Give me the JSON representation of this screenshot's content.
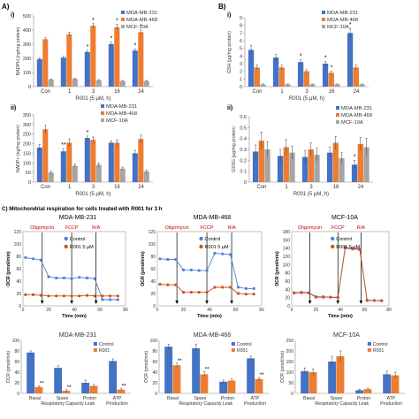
{
  "panel_a": {
    "letter": "A)",
    "top_left": {
      "sub": "i)",
      "ylabel": "NADPH (ng/mg protein)",
      "ymax": 500,
      "yticks": [
        "0",
        "100",
        "200",
        "300",
        "400",
        "500"
      ]
    },
    "bottom_left": {
      "sub": "ii)",
      "ylabel": "NADP+ (ng/mg protein)",
      "ymax": 350,
      "yticks": [
        "0",
        "50",
        "100",
        "150",
        "200",
        "250",
        "300",
        "350"
      ]
    }
  },
  "panel_b": {
    "letter": "B)",
    "top_right": {
      "sub": "i)",
      "ylabel": "GSH (μg/mg protein)",
      "ymax": 9,
      "yticks": [
        "0",
        "1",
        "2",
        "3",
        "4",
        "5",
        "6",
        "7",
        "8",
        "9"
      ]
    },
    "bottom_right": {
      "sub": "ii)",
      "ylabel": "GSSG (μg/mg protein)",
      "ymax": 0.6,
      "yticks": [
        "0",
        "0.1",
        "0.2",
        "0.3",
        "0.4",
        "0.5",
        "0.6"
      ]
    }
  },
  "panel_c": {
    "caption": "C) Mitochondrial respiration for cells treated with R001 for 3 h",
    "seahorse_titles": [
      "MDA-MB-231",
      "MDA-MB-468",
      "MCF-10A"
    ],
    "ocr_ylabel": "OCR (pmol/min)",
    "time_xlabel": "Time (min)",
    "injections": [
      "Oligomycin",
      "FCCP",
      "R/A"
    ],
    "ocr_legend": [
      "Control",
      "R001 5 μM"
    ],
    "bottom_legend": [
      "Control",
      "R001"
    ],
    "bar_categories": [
      "Basal",
      "Spare Respiratory Capacity",
      "Proton Leak",
      "ATP Production"
    ]
  },
  "legend_cells": [
    "MDA-MB-231",
    "MDA-MB-468",
    "MCF-10A"
  ],
  "treatment_xlabel": "R001 (5 μM, h)",
  "time_points": [
    "Con",
    "1",
    "3",
    "16",
    "24"
  ],
  "colors": {
    "blue": "#4472c4",
    "orange": "#ed7d31",
    "gray": "#a5a5a5",
    "red_label": "#c00000"
  },
  "chart_data": [
    {
      "id": "A-i",
      "type": "bar",
      "title": "",
      "xlabel": "R001 (5 μM, h)",
      "ylabel": "NADPH (ng/mg protein)",
      "ylim": [
        0,
        500
      ],
      "categories": [
        "Con",
        "1",
        "3",
        "16",
        "24"
      ],
      "series": [
        {
          "name": "MDA-MB-231",
          "values": [
            195,
            205,
            245,
            300,
            255
          ],
          "errors": [
            8,
            10,
            12,
            15,
            12
          ]
        },
        {
          "name": "MDA-MB-468",
          "values": [
            335,
            370,
            430,
            420,
            385
          ],
          "errors": [
            10,
            15,
            15,
            20,
            15
          ]
        },
        {
          "name": "MCF-10A",
          "values": [
            50,
            55,
            45,
            40,
            40
          ],
          "errors": [
            5,
            5,
            5,
            4,
            4
          ]
        }
      ],
      "significance": [
        "",
        "",
        "*",
        "*",
        "*"
      ],
      "significance_top": [
        "",
        "",
        "*",
        "*",
        "*"
      ]
    },
    {
      "id": "B-i",
      "type": "bar",
      "title": "",
      "xlabel": "R001 (5 μM, h)",
      "ylabel": "GSH (μg/mg protein)",
      "ylim": [
        0,
        9
      ],
      "categories": [
        "Con",
        "1",
        "3",
        "16",
        "24"
      ],
      "series": [
        {
          "name": "MDA-MB-231",
          "values": [
            4.8,
            3.8,
            3.2,
            3.0,
            7.0
          ],
          "errors": [
            0.6,
            0.4,
            0.3,
            0.3,
            0.6
          ]
        },
        {
          "name": "MDA-MB-468",
          "values": [
            2.5,
            2.5,
            2.0,
            1.8,
            2.5
          ],
          "errors": [
            0.3,
            0.3,
            0.2,
            0.2,
            0.3
          ]
        },
        {
          "name": "MCF-10A",
          "values": [
            0.3,
            0.3,
            0.3,
            0.3,
            0.3
          ],
          "errors": [
            0.05,
            0.05,
            0.05,
            0.05,
            0.05
          ]
        }
      ],
      "significance": [
        "",
        "",
        "*",
        "*",
        "*"
      ],
      "significance_top": [
        "",
        "",
        "",
        "*",
        ""
      ]
    },
    {
      "id": "A-ii",
      "type": "bar",
      "title": "",
      "xlabel": "R001 (5 μM, h)",
      "ylabel": "NADP+ (ng/mg protein)",
      "ylim": [
        0,
        350
      ],
      "categories": [
        "Con",
        "1",
        "3",
        "16",
        "24"
      ],
      "series": [
        {
          "name": "MDA-MB-231",
          "values": [
            180,
            160,
            230,
            205,
            150
          ],
          "errors": [
            15,
            15,
            10,
            10,
            15
          ]
        },
        {
          "name": "MDA-MB-468",
          "values": [
            275,
            205,
            220,
            205,
            225
          ],
          "errors": [
            20,
            20,
            15,
            15,
            20
          ]
        },
        {
          "name": "MCF-10A",
          "values": [
            50,
            85,
            90,
            70,
            55
          ],
          "errors": [
            8,
            10,
            10,
            8,
            8
          ]
        }
      ],
      "significance": [
        "",
        "**",
        "*",
        "",
        ""
      ],
      "significance_top": [
        "",
        "",
        "",
        "",
        ""
      ]
    },
    {
      "id": "B-ii",
      "type": "bar",
      "title": "",
      "xlabel": "R001 (5 μM, h)",
      "ylabel": "GSSG (μg/mg protein)",
      "ylim": [
        0,
        0.6
      ],
      "categories": [
        "Con",
        "1",
        "3",
        "16",
        "24"
      ],
      "series": [
        {
          "name": "MDA-MB-231",
          "values": [
            0.28,
            0.24,
            0.23,
            0.27,
            0.16
          ],
          "errors": [
            0.06,
            0.06,
            0.06,
            0.05,
            0.04
          ]
        },
        {
          "name": "MDA-MB-468",
          "values": [
            0.38,
            0.32,
            0.3,
            0.36,
            0.35
          ],
          "errors": [
            0.08,
            0.07,
            0.06,
            0.06,
            0.06
          ]
        },
        {
          "name": "MCF-10A",
          "values": [
            0.3,
            0.27,
            0.25,
            0.22,
            0.32
          ],
          "errors": [
            0.07,
            0.06,
            0.06,
            0.05,
            0.08
          ]
        }
      ],
      "significance": [
        "",
        "",
        "",
        "",
        "*"
      ],
      "significance_top": [
        "",
        "",
        "",
        "",
        ""
      ]
    },
    {
      "id": "C-ocr-231",
      "type": "line",
      "title": "MDA-MB-231",
      "xlabel": "Time (min)",
      "ylabel": "OCR (pmol/min)",
      "xlim": [
        0,
        80
      ],
      "ylim": [
        0,
        120
      ],
      "xticks": [
        0,
        20,
        40,
        60,
        80
      ],
      "yticks": [
        0,
        20,
        40,
        60,
        80,
        100,
        120
      ],
      "injections": [
        {
          "label": "Oligomycin",
          "x": 15
        },
        {
          "label": "FCCP",
          "x": 38
        },
        {
          "label": "R/A",
          "x": 57
        }
      ],
      "series": [
        {
          "name": "Control",
          "x": [
            2,
            8,
            14,
            20,
            26,
            32,
            38,
            44,
            50,
            56,
            62,
            68,
            74
          ],
          "y": [
            78,
            76,
            74,
            47,
            45,
            45,
            44,
            46,
            45,
            44,
            10,
            10,
            10
          ]
        },
        {
          "name": "R001 5 μM",
          "x": [
            2,
            8,
            14,
            20,
            26,
            32,
            38,
            44,
            50,
            56,
            62,
            68,
            74
          ],
          "y": [
            18,
            18,
            17,
            16,
            16,
            16,
            16,
            16,
            17,
            16,
            16,
            16,
            16
          ]
        }
      ]
    },
    {
      "id": "C-ocr-468",
      "type": "line",
      "title": "MDA-MB-468",
      "xlabel": "Time (min)",
      "ylabel": "OCR (pmol/min)",
      "xlim": [
        0,
        80
      ],
      "ylim": [
        0,
        120
      ],
      "xticks": [
        0,
        20,
        40,
        60,
        80
      ],
      "yticks": [
        0,
        20,
        40,
        60,
        80,
        100,
        120
      ],
      "injections": [
        {
          "label": "Oligomycin",
          "x": 15
        },
        {
          "label": "FCCP",
          "x": 38
        },
        {
          "label": "R/A",
          "x": 57
        }
      ],
      "series": [
        {
          "name": "Control",
          "x": [
            2,
            8,
            14,
            20,
            26,
            32,
            38,
            44,
            50,
            56,
            62,
            68,
            74
          ],
          "y": [
            76,
            75,
            75,
            58,
            58,
            57,
            57,
            85,
            84,
            83,
            30,
            28,
            28
          ]
        },
        {
          "name": "R001 5 μM",
          "x": [
            2,
            8,
            14,
            20,
            26,
            32,
            38,
            44,
            50,
            56,
            62,
            68,
            74
          ],
          "y": [
            35,
            34,
            34,
            22,
            22,
            22,
            22,
            30,
            30,
            30,
            20,
            19,
            19
          ]
        }
      ]
    },
    {
      "id": "C-ocr-10a",
      "type": "line",
      "title": "MCF-10A",
      "xlabel": "Time (min)",
      "ylabel": "OCR (pmol/min)",
      "xlim": [
        0,
        80
      ],
      "ylim": [
        0,
        180
      ],
      "xticks": [
        0,
        20,
        40,
        60,
        80
      ],
      "yticks": [
        0,
        20,
        40,
        60,
        80,
        100,
        120,
        140,
        160,
        180
      ],
      "injections": [
        {
          "label": "Oligomycin",
          "x": 15
        },
        {
          "label": "FCCP",
          "x": 38
        },
        {
          "label": "R/A",
          "x": 57
        }
      ],
      "series": [
        {
          "name": "Control",
          "x": [
            2,
            8,
            14,
            20,
            26,
            32,
            38,
            44,
            50,
            56,
            62,
            68,
            74
          ],
          "y": [
            32,
            33,
            32,
            22,
            22,
            21,
            21,
            142,
            140,
            138,
            14,
            13,
            13
          ]
        },
        {
          "name": "R001 5 μM",
          "x": [
            2,
            8,
            14,
            20,
            26,
            32,
            38,
            44,
            50,
            56,
            62,
            68,
            74
          ],
          "y": [
            31,
            32,
            31,
            21,
            21,
            21,
            20,
            140,
            138,
            136,
            13,
            13,
            12
          ]
        }
      ]
    },
    {
      "id": "C-bar-231",
      "type": "bar",
      "title": "MDA-MB-231",
      "xlabel": "",
      "ylabel": "OCR (pmol/min)",
      "ylim": [
        0,
        100
      ],
      "yticks": [
        0,
        20,
        40,
        60,
        80,
        100
      ],
      "categories": [
        "Basal",
        "Spare Respiratory Capacity",
        "Proton Leak",
        "ATP Production"
      ],
      "series": [
        {
          "name": "Control",
          "values": [
            77,
            48,
            20,
            61
          ],
          "errors": [
            3,
            4,
            5,
            4
          ]
        },
        {
          "name": "R001",
          "values": [
            12,
            5,
            14,
            7
          ],
          "errors": [
            2,
            2,
            3,
            2
          ]
        }
      ],
      "significance": [
        "**",
        "**",
        "",
        "**"
      ]
    },
    {
      "id": "C-bar-468",
      "type": "bar",
      "title": "MDA-MB-468",
      "xlabel": "",
      "ylabel": "OCR (pmol/min)",
      "ylim": [
        0,
        100
      ],
      "yticks": [
        0,
        20,
        40,
        60,
        80,
        100
      ],
      "categories": [
        "Basal",
        "Spare Respiratory Capacity",
        "Proton Leak",
        "ATP Production"
      ],
      "series": [
        {
          "name": "Control",
          "values": [
            88,
            85,
            22,
            66
          ],
          "errors": [
            5,
            8,
            3,
            4
          ]
        },
        {
          "name": "R001",
          "values": [
            53,
            36,
            24,
            27
          ],
          "errors": [
            4,
            5,
            3,
            3
          ]
        }
      ],
      "significance": [
        "**",
        "**",
        "",
        "**"
      ]
    },
    {
      "id": "C-bar-10a",
      "type": "bar",
      "title": "MCF-10A",
      "xlabel": "",
      "ylabel": "OCR (pmol/min)",
      "ylim": [
        0,
        250
      ],
      "yticks": [
        0,
        50,
        100,
        150,
        200,
        250
      ],
      "categories": [
        "Basal",
        "Spare Respiratory Capacity",
        "Proton Leak",
        "ATP Production"
      ],
      "series": [
        {
          "name": "Control",
          "values": [
            105,
            150,
            15,
            90
          ],
          "errors": [
            15,
            25,
            5,
            15
          ]
        },
        {
          "name": "R001",
          "values": [
            100,
            175,
            20,
            85
          ],
          "errors": [
            15,
            25,
            5,
            15
          ]
        }
      ],
      "significance": [
        "",
        "",
        "",
        ""
      ]
    }
  ]
}
